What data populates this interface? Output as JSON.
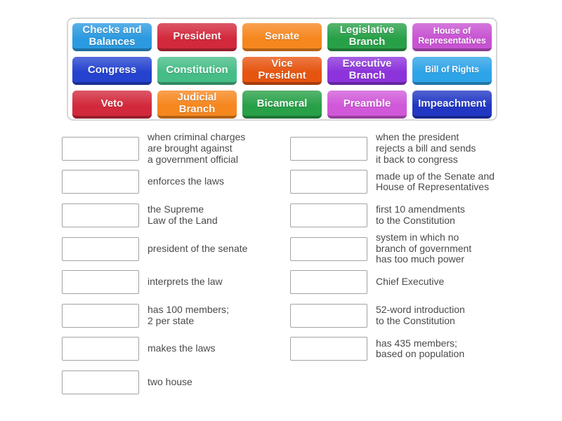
{
  "palette": {
    "background": "#ffffff",
    "panel_border": "#d6d6d6",
    "box_border": "#a3a3a3",
    "definition_text": "#4a4a4a",
    "tile_text": "#ffffff"
  },
  "tile_panel": {
    "tiles": [
      {
        "label": "Checks and\nBalances",
        "color": "#2b9ae0"
      },
      {
        "label": "President",
        "color": "#d2293c"
      },
      {
        "label": "Senate",
        "color": "#f6871f"
      },
      {
        "label": "Legislative\nBranch",
        "color": "#28a048"
      },
      {
        "label": "House of\nRepresentatives",
        "color": "#c853d2"
      },
      {
        "label": "Congress",
        "color": "#2543cf"
      },
      {
        "label": "Constitution",
        "color": "#46bd87"
      },
      {
        "label": "Vice\nPresident",
        "color": "#e65510"
      },
      {
        "label": "Executive\nBranch",
        "color": "#8c33db"
      },
      {
        "label": "Bill of Rights",
        "color": "#2ea4e8"
      },
      {
        "label": "Veto",
        "color": "#d2293c"
      },
      {
        "label": "Judicial\nBranch",
        "color": "#f6871f"
      },
      {
        "label": "Bicameral",
        "color": "#28a048"
      },
      {
        "label": "Preamble",
        "color": "#d158d8"
      },
      {
        "label": "Impeachment",
        "color": "#2137c4"
      }
    ]
  },
  "match_list": {
    "left": [
      "when criminal charges\nare brought against\na government official",
      "enforces the laws",
      "the Supreme\nLaw of the Land",
      "president of the senate",
      "interprets the law",
      "has 100 members;\n2 per state",
      "makes the laws",
      "two house"
    ],
    "right": [
      "when the president\nrejects a bill and sends\nit back to congress",
      "made up of the Senate and\nHouse of Representatives",
      "first 10 amendments\nto the Constitution",
      "system in which no\nbranch of government\nhas too much power",
      "Chief Executive",
      "52-word introduction\nto the Constitution",
      "has 435 members;\nbased on population"
    ]
  }
}
